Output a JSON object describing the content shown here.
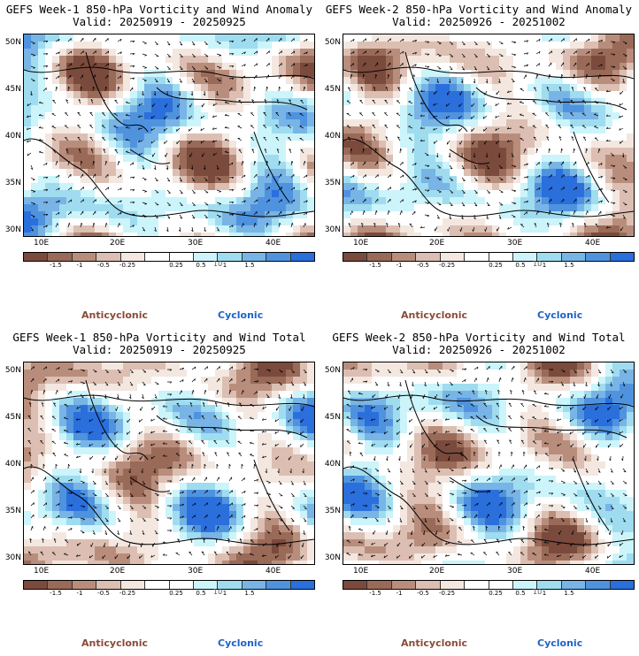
{
  "colors": {
    "bins": [
      "#7a4a3c",
      "#9a6a58",
      "#b98d7c",
      "#dcbfb2",
      "#f3e7e0",
      "#ffffff",
      "#ffffff",
      "#ccf4fb",
      "#9fdcef",
      "#78b4e6",
      "#4f93df",
      "#2a6fdc"
    ],
    "anticyclonic": "#8b4b3a",
    "cyclonic": "#1e64c8"
  },
  "colorbar": {
    "ticks": [
      "-1.5",
      "-1",
      "-0.5",
      "-0.25",
      "0.25",
      "0.5",
      "1",
      "1.5"
    ],
    "scale_label": "10"
  },
  "lat_labels": [
    "50N",
    "45N",
    "40N",
    "35N",
    "30N"
  ],
  "lon_labels": [
    "10E",
    "20E",
    "30E",
    "40E"
  ],
  "legend": {
    "anticyclonic": "Anticyclonic",
    "cyclonic": "Cyclonic"
  },
  "panels": [
    {
      "title": "GEFS Week-1 850-hPa Vorticity and Wind Anomaly",
      "valid": "Valid: 20250919 - 20250925"
    },
    {
      "title": "GEFS Week-2 850-hPa Vorticity and Wind Anomaly",
      "valid": "Valid: 20250926 - 20251002"
    },
    {
      "title": "GEFS Week-1 850-hPa Vorticity and Wind Total",
      "valid": "Valid: 20250919 - 20250925"
    },
    {
      "title": "GEFS Week-2 850-hPa Vorticity and Wind Total",
      "valid": "Valid: 20250926 - 20251002"
    }
  ]
}
